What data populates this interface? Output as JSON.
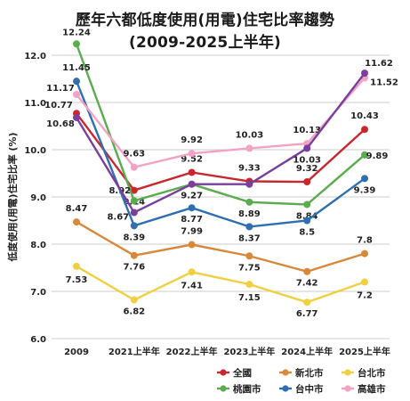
{
  "chart_data": {
    "type": "line",
    "title": "歷年六都低度使用(用電)住宅比率趨勢",
    "subtitle": "(2009-2025上半年)",
    "xlabel": "",
    "ylabel": "低度使用(用電)住宅比率 (%)",
    "categories": [
      "2009",
      "2021上半年",
      "2022上半年",
      "2023上半年",
      "2024上半年",
      "2025上半年"
    ],
    "ylim": [
      6.0,
      12.0
    ],
    "yticks": [
      "6.0",
      "7.0",
      "8.0",
      "9.0",
      "10.0",
      "11.0",
      "12.0"
    ],
    "grid": "horizontal",
    "legend_position": "bottom-right",
    "series": [
      {
        "name": "全國",
        "color": "#c8282d",
        "values": [
          10.77,
          9.14,
          9.52,
          9.33,
          9.32,
          10.43
        ],
        "labels": [
          "10.77",
          "9.14",
          "9.52",
          "9.33",
          "9.32",
          "10.43"
        ]
      },
      {
        "name": "桃園市",
        "color": "#5bab4f",
        "values": [
          12.24,
          8.92,
          9.27,
          8.89,
          8.84,
          9.89
        ],
        "labels": [
          "12.24",
          "8.92",
          "9.27",
          "8.89",
          "8.84",
          "9.89"
        ]
      },
      {
        "name": "新北市",
        "color": "#d9883a",
        "values": [
          8.47,
          7.76,
          7.99,
          7.75,
          7.42,
          7.8
        ],
        "labels": [
          "8.47",
          "7.76",
          "7.99",
          "7.75",
          "7.42",
          "7.8"
        ]
      },
      {
        "name": "台中市",
        "color": "#2f6fb0",
        "values": [
          11.45,
          8.39,
          8.77,
          8.37,
          8.5,
          9.39
        ],
        "labels": [
          "11.45",
          "8.39",
          "8.77",
          "8.37",
          "8.5",
          "9.39"
        ]
      },
      {
        "name": "台北市",
        "color": "#f0d040",
        "values": [
          7.53,
          6.82,
          7.41,
          7.15,
          6.77,
          7.2
        ],
        "labels": [
          "7.53",
          "6.82",
          "7.41",
          "7.15",
          "6.77",
          "7.2"
        ]
      },
      {
        "name": "高雄市",
        "color": "#f2a3c3",
        "values": [
          11.17,
          9.63,
          9.92,
          10.03,
          10.13,
          11.52
        ],
        "labels": [
          "11.17",
          "9.63",
          "9.92",
          "10.03",
          "10.13",
          "11.52"
        ]
      },
      {
        "name": "purple-line",
        "color": "#7a3e9c",
        "values": [
          10.68,
          8.67,
          9.27,
          9.27,
          10.03,
          11.62
        ],
        "labels": [
          "10.68",
          "8.67",
          "",
          "",
          "10.03",
          "11.62"
        ]
      }
    ],
    "legend": [
      {
        "name": "全國",
        "color": "#c8282d"
      },
      {
        "name": "新北市",
        "color": "#d9883a"
      },
      {
        "name": "台北市",
        "color": "#f0d040"
      },
      {
        "name": "桃園市",
        "color": "#5bab4f"
      },
      {
        "name": "台中市",
        "color": "#2f6fb0"
      },
      {
        "name": "高雄市",
        "color": "#f2a3c3"
      }
    ]
  }
}
